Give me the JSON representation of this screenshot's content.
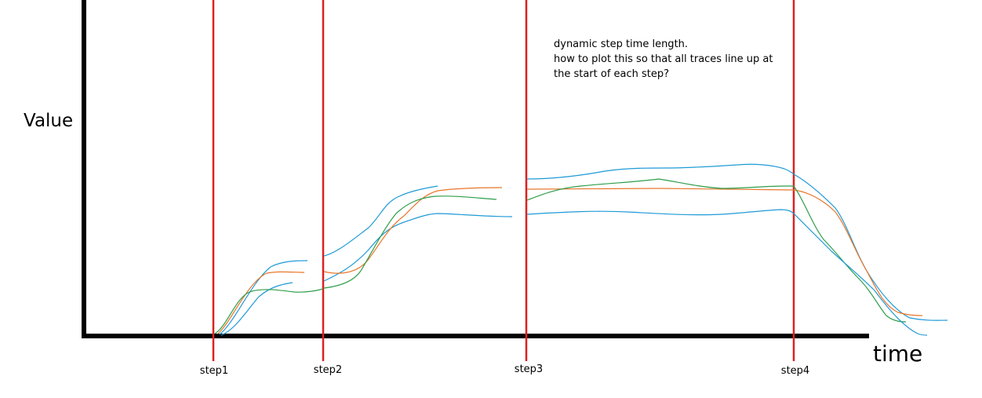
{
  "labels": {
    "y_axis": "Value",
    "x_axis": "time"
  },
  "note_lines": [
    "dynamic step time length.",
    "how to plot this so that all traces line up at",
    "the start of each step?"
  ],
  "steps": [
    "step1",
    "step2",
    "step3",
    "step4"
  ],
  "colors": {
    "axis": "#000000",
    "step_line": "#e02020",
    "trace_blue": "#1f9ad6",
    "trace_orange": "#e8762b",
    "trace_green": "#2e9e4a"
  }
}
